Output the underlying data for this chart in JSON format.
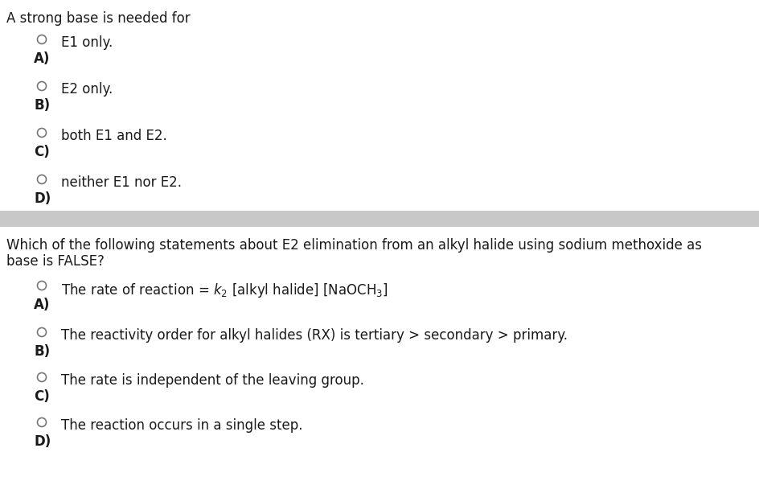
{
  "bg_color": "#ffffff",
  "separator_color": "#c8c8c8",
  "text_color": "#1a1a1a",
  "q1_title": "A strong base is needed for",
  "q1_options": [
    {
      "label": "A)",
      "text": "E1 only."
    },
    {
      "label": "B)",
      "text": "E2 only."
    },
    {
      "label": "C)",
      "text": "both E1 and E2."
    },
    {
      "label": "D)",
      "text": "neither E1 nor E2."
    }
  ],
  "q2_title_line1": "Which of the following statements about E2 elimination from an alkyl halide using sodium methoxide as",
  "q2_title_line2": "base is FALSE?",
  "q2_options": [
    {
      "label": "A)",
      "use_math": true,
      "text": "The rate of reaction = $k_2$ [alkyl halide] [NaOCH$_3$]"
    },
    {
      "label": "B)",
      "use_math": false,
      "text": "The reactivity order for alkyl halides (RX) is tertiary > secondary > primary."
    },
    {
      "label": "C)",
      "use_math": false,
      "text": "The rate is independent of the leaving group."
    },
    {
      "label": "D)",
      "use_math": false,
      "text": "The reaction occurs in a single step."
    }
  ],
  "title_fontsize": 12,
  "option_fontsize": 12,
  "label_fontsize": 12,
  "radio_color": "#777777",
  "radio_linewidth": 1.2
}
